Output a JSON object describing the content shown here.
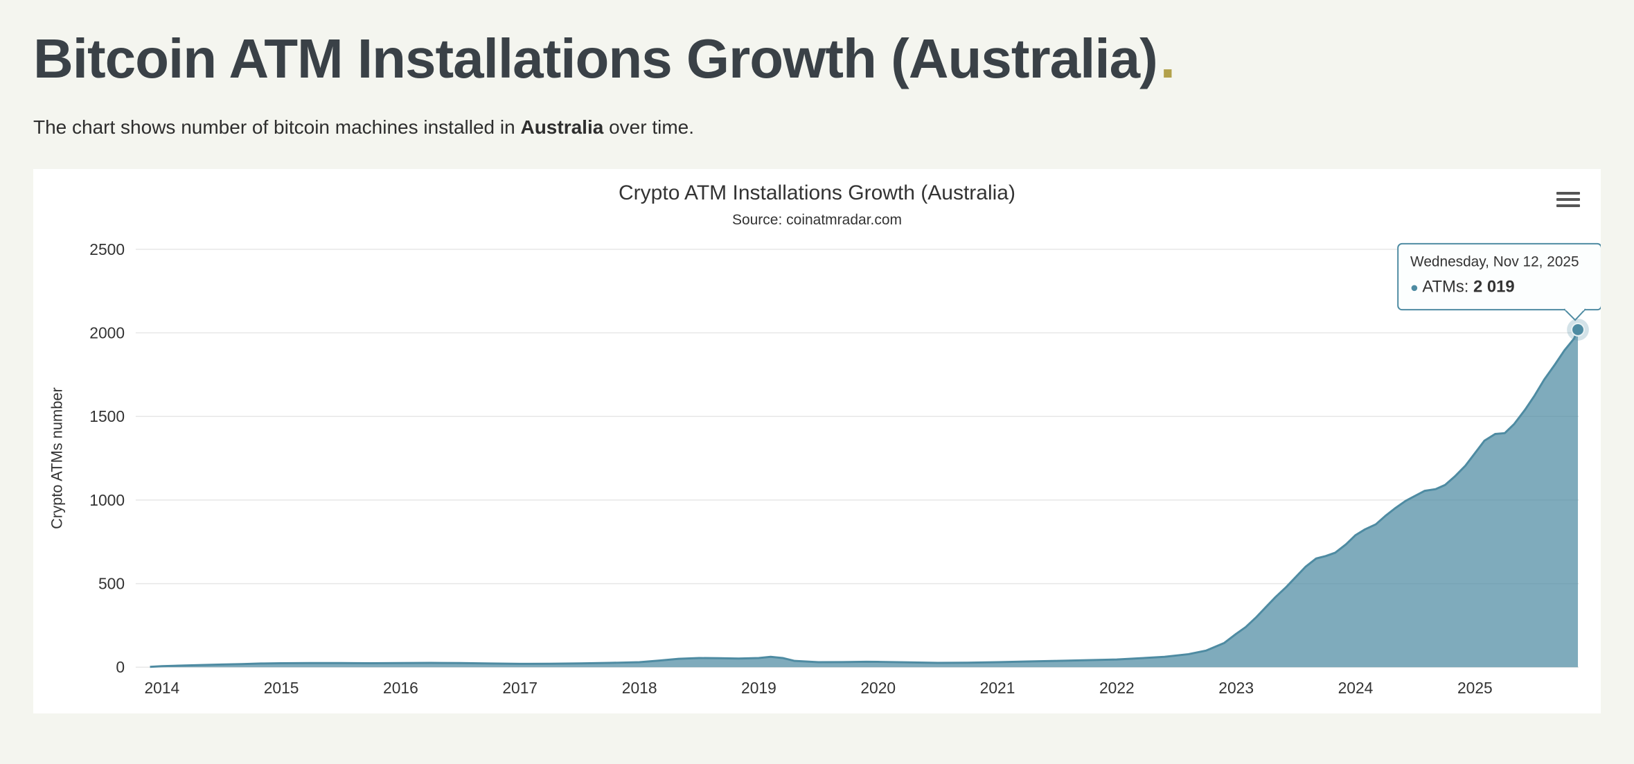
{
  "header": {
    "title": "Bitcoin ATM Installations Growth (Australia)",
    "accent_dot": ".",
    "description_prefix": "The chart shows number of bitcoin machines installed in ",
    "description_bold": "Australia",
    "description_suffix": " over time."
  },
  "icons": {
    "chart_menu": "hamburger-menu-icon",
    "tooltip_marker": "series-dot-icon"
  },
  "colors": {
    "page_background": "#f4f5ef",
    "heading_text": "#3a4147",
    "accent": "#b2a14b",
    "series_line": "#4e8ba2",
    "grid_line": "#e7e7e7",
    "tooltip_background": "#fcfefe",
    "tooltip_border": "#4e8ba2"
  },
  "chart_data": {
    "type": "area",
    "title": "Crypto ATM Installations Growth (Australia)",
    "subtitle": "Source: coinatmradar.com",
    "xlabel": "",
    "ylabel": "Crypto ATMs number",
    "xlim": [
      2013.78,
      2025.87
    ],
    "ylim": [
      0,
      2500
    ],
    "yticks": [
      0,
      500,
      1000,
      1500,
      2000,
      2500
    ],
    "xticks": [
      2014,
      2015,
      2016,
      2017,
      2018,
      2019,
      2020,
      2021,
      2022,
      2023,
      2024,
      2025
    ],
    "grid": "horizontal",
    "legend": "none",
    "series": [
      {
        "name": "ATMs",
        "color": "#4e8ba2",
        "fill_opacity": 0.72,
        "points": [
          [
            2013.9,
            2
          ],
          [
            2014.0,
            6
          ],
          [
            2014.17,
            10
          ],
          [
            2014.33,
            13
          ],
          [
            2014.5,
            16
          ],
          [
            2014.67,
            19
          ],
          [
            2014.83,
            22
          ],
          [
            2015.0,
            24
          ],
          [
            2015.25,
            25
          ],
          [
            2015.5,
            25
          ],
          [
            2015.75,
            24
          ],
          [
            2016.0,
            25
          ],
          [
            2016.25,
            26
          ],
          [
            2016.5,
            25
          ],
          [
            2016.75,
            22
          ],
          [
            2017.0,
            20
          ],
          [
            2017.25,
            21
          ],
          [
            2017.5,
            23
          ],
          [
            2017.75,
            26
          ],
          [
            2018.0,
            30
          ],
          [
            2018.17,
            40
          ],
          [
            2018.33,
            50
          ],
          [
            2018.5,
            55
          ],
          [
            2018.67,
            54
          ],
          [
            2018.83,
            52
          ],
          [
            2019.0,
            55
          ],
          [
            2019.1,
            62
          ],
          [
            2019.2,
            55
          ],
          [
            2019.3,
            38
          ],
          [
            2019.5,
            30
          ],
          [
            2019.7,
            31
          ],
          [
            2019.9,
            33
          ],
          [
            2020.0,
            32
          ],
          [
            2020.25,
            29
          ],
          [
            2020.5,
            26
          ],
          [
            2020.75,
            27
          ],
          [
            2021.0,
            30
          ],
          [
            2021.25,
            34
          ],
          [
            2021.5,
            38
          ],
          [
            2021.75,
            42
          ],
          [
            2022.0,
            46
          ],
          [
            2022.2,
            54
          ],
          [
            2022.4,
            62
          ],
          [
            2022.6,
            78
          ],
          [
            2022.75,
            100
          ],
          [
            2022.9,
            145
          ],
          [
            2023.0,
            200
          ],
          [
            2023.08,
            240
          ],
          [
            2023.17,
            300
          ],
          [
            2023.25,
            360
          ],
          [
            2023.33,
            420
          ],
          [
            2023.42,
            480
          ],
          [
            2023.5,
            540
          ],
          [
            2023.58,
            600
          ],
          [
            2023.67,
            650
          ],
          [
            2023.75,
            665
          ],
          [
            2023.83,
            685
          ],
          [
            2023.92,
            735
          ],
          [
            2024.0,
            790
          ],
          [
            2024.08,
            825
          ],
          [
            2024.17,
            855
          ],
          [
            2024.25,
            905
          ],
          [
            2024.33,
            950
          ],
          [
            2024.42,
            995
          ],
          [
            2024.5,
            1025
          ],
          [
            2024.58,
            1055
          ],
          [
            2024.67,
            1065
          ],
          [
            2024.75,
            1090
          ],
          [
            2024.83,
            1140
          ],
          [
            2024.92,
            1205
          ],
          [
            2025.0,
            1280
          ],
          [
            2025.08,
            1355
          ],
          [
            2025.17,
            1395
          ],
          [
            2025.25,
            1400
          ],
          [
            2025.33,
            1455
          ],
          [
            2025.42,
            1540
          ],
          [
            2025.5,
            1625
          ],
          [
            2025.58,
            1720
          ],
          [
            2025.67,
            1810
          ],
          [
            2025.75,
            1895
          ],
          [
            2025.83,
            1965
          ],
          [
            2025.863,
            2019
          ]
        ]
      }
    ],
    "tooltip": {
      "date": "Wednesday, Nov 12, 2025",
      "marker_glyph": "●",
      "series_label": " ATMs: ",
      "value": "2 019"
    }
  }
}
